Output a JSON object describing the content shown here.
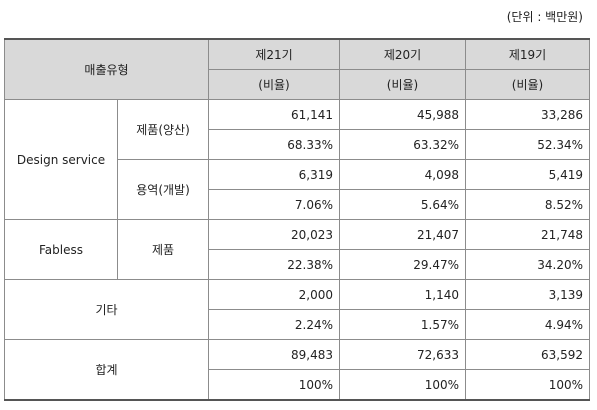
{
  "unit_note": "(단위 : 백만원)",
  "header": {
    "type_label": "매출유형",
    "periods": [
      "제21기",
      "제20기",
      "제19기"
    ],
    "ratio_label": "(비율)"
  },
  "rows": {
    "design": {
      "group": "Design service",
      "product": {
        "label": "제품(양산)",
        "values": [
          "61,141",
          "45,988",
          "33,286"
        ],
        "ratios": [
          "68.33%",
          "63.32%",
          "52.34%"
        ]
      },
      "service": {
        "label": "용역(개발)",
        "values": [
          "6,319",
          "4,098",
          "5,419"
        ],
        "ratios": [
          "7.06%",
          "5.64%",
          "8.52%"
        ]
      }
    },
    "fabless": {
      "group": "Fabless",
      "label": "제품",
      "values": [
        "20,023",
        "21,407",
        "21,748"
      ],
      "ratios": [
        "22.38%",
        "29.47%",
        "34.20%"
      ]
    },
    "other": {
      "label": "기타",
      "values": [
        "2,000",
        "1,140",
        "3,139"
      ],
      "ratios": [
        "2.24%",
        "1.57%",
        "4.94%"
      ]
    },
    "total": {
      "label": "합계",
      "values": [
        "89,483",
        "72,633",
        "63,592"
      ],
      "ratios": [
        "100%",
        "100%",
        "100%"
      ]
    }
  }
}
